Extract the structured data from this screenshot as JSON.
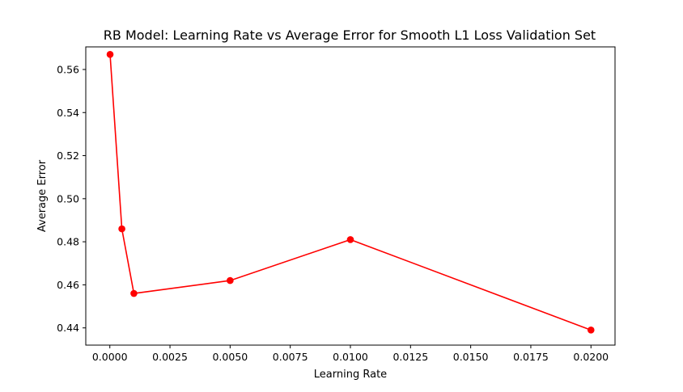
{
  "chart_data": {
    "type": "line",
    "title": "RB Model: Learning Rate vs Average Error for Smooth L1 Loss Validation Set",
    "xlabel": "Learning Rate",
    "ylabel": "Average Error",
    "x": [
      1e-05,
      0.0005,
      0.001,
      0.005,
      0.01,
      0.02
    ],
    "series": [
      {
        "values": [
          0.567,
          0.486,
          0.456,
          0.462,
          0.481,
          0.439
        ],
        "color": "#ff0000",
        "marker": "circle"
      }
    ],
    "xlim": [
      -0.001,
      0.021
    ],
    "ylim": [
      0.432,
      0.5705
    ],
    "x_ticks": [
      "0.0000",
      "0.0025",
      "0.0050",
      "0.0075",
      "0.0100",
      "0.0125",
      "0.0150",
      "0.0175",
      "0.0200"
    ],
    "y_ticks": [
      "0.44",
      "0.46",
      "0.48",
      "0.50",
      "0.52",
      "0.54",
      "0.56"
    ],
    "grid": false,
    "legend": "none"
  }
}
